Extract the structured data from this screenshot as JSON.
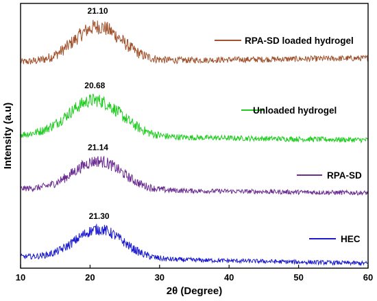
{
  "chart_data": {
    "type": "line",
    "title": "",
    "xlabel": "2θ (Degree)",
    "ylabel": "Intensity (a.u)",
    "xlim": [
      10,
      60
    ],
    "x_ticks": [
      10,
      20,
      30,
      40,
      50,
      60
    ],
    "y_tick_labels": false,
    "grid": false,
    "legend_placement": "inline-right",
    "series": [
      {
        "name": "RPA-SD loaded hydrogel",
        "color": "#a0522d",
        "peak_x": 21.1,
        "peak_label": "21.10",
        "baseline_left": 68.5,
        "baseline_right": 69.8,
        "peak_height": 11.5,
        "peak_width": 3.4,
        "noise": 1.8,
        "x": [
          10,
          12,
          14,
          16,
          18,
          20,
          21.1,
          22,
          24,
          26,
          28,
          30,
          35,
          40,
          45,
          50,
          55,
          60
        ],
        "values": [
          68.5,
          69.2,
          70.4,
          72.4,
          75.8,
          79.0,
          80.0,
          79.2,
          75.6,
          72.4,
          70.8,
          70.0,
          69.8,
          69.8,
          69.8,
          69.8,
          69.8,
          69.8
        ]
      },
      {
        "name": "Unloaded hydrogel",
        "color": "#22cc22",
        "peak_x": 20.68,
        "peak_label": "20.68",
        "baseline_left": 44.2,
        "baseline_right": 42.6,
        "peak_height": 12.0,
        "peak_width": 3.8,
        "noise": 1.6,
        "x": [
          10,
          12,
          14,
          16,
          18,
          20,
          20.68,
          22,
          24,
          26,
          28,
          30,
          35,
          40,
          45,
          50,
          55,
          60
        ],
        "values": [
          44.2,
          45.0,
          46.2,
          48.6,
          52.4,
          55.6,
          56.0,
          55.2,
          52.0,
          48.6,
          46.0,
          44.6,
          43.4,
          43.0,
          42.8,
          42.7,
          42.6,
          42.6
        ]
      },
      {
        "name": "RPA-SD",
        "color": "#6a2c91",
        "peak_x": 21.14,
        "peak_label": "21.14",
        "baseline_left": 26.4,
        "baseline_right": 25.0,
        "peak_height": 9.5,
        "peak_width": 3.5,
        "noise": 1.4,
        "x": [
          10,
          12,
          14,
          16,
          18,
          20,
          21.14,
          22,
          24,
          26,
          28,
          30,
          35,
          40,
          45,
          50,
          55,
          60
        ],
        "values": [
          26.4,
          26.8,
          27.6,
          29.2,
          32.2,
          35.4,
          36.0,
          35.4,
          32.6,
          29.6,
          27.8,
          26.8,
          26.0,
          25.6,
          25.3,
          25.1,
          25.0,
          25.0
        ]
      },
      {
        "name": "HEC",
        "color": "#1a1acc",
        "peak_x": 21.3,
        "peak_label": "21.30",
        "baseline_left": 3.8,
        "baseline_right": 1.6,
        "peak_height": 9.6,
        "peak_width": 3.4,
        "noise": 1.3,
        "x": [
          10,
          12,
          14,
          16,
          18,
          20,
          21.3,
          22,
          24,
          26,
          28,
          30,
          35,
          40,
          45,
          50,
          55,
          60
        ],
        "values": [
          3.8,
          4.2,
          5.0,
          6.6,
          9.6,
          12.6,
          13.2,
          12.8,
          10.2,
          6.8,
          4.6,
          3.6,
          2.6,
          2.2,
          1.9,
          1.7,
          1.6,
          1.6
        ]
      }
    ]
  }
}
